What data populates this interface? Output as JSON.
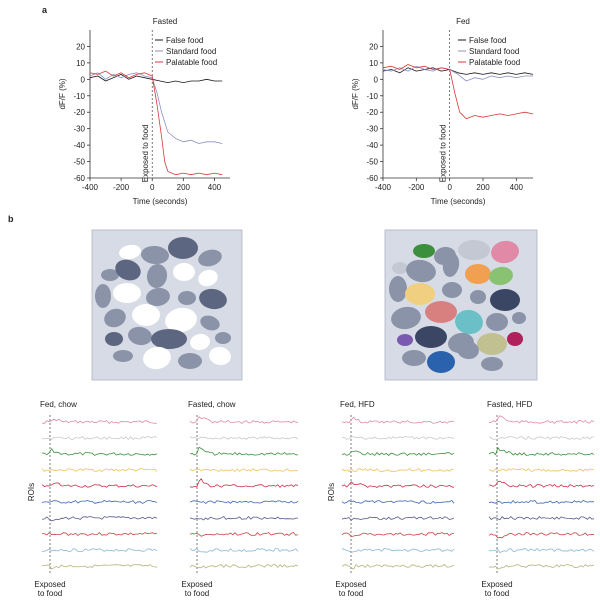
{
  "panel_labels": {
    "a": "a",
    "b": "b"
  },
  "chart_data": [
    {
      "type": "line",
      "title": "Fasted",
      "xlabel": "Time (seconds)",
      "ylabel": "dF/F (%)",
      "xlim": [
        -400,
        500
      ],
      "ylim": [
        -60,
        30
      ],
      "xticks": [
        -400,
        -200,
        0,
        200,
        400
      ],
      "yticks": [
        20,
        10,
        0,
        -10,
        -20,
        -30,
        -40,
        -50,
        -60
      ],
      "annotation": "Exposed to food",
      "legend_position": "top-right",
      "series": [
        {
          "name": "False food",
          "color": "#1a1a1a",
          "x": [
            -400,
            -350,
            -300,
            -250,
            -200,
            -150,
            -100,
            -50,
            0,
            50,
            100,
            150,
            200,
            250,
            300,
            350,
            400,
            450
          ],
          "y": [
            1,
            2,
            -1,
            1,
            3,
            0,
            2,
            1,
            0,
            -1,
            -2,
            -1,
            -2,
            -1,
            -1,
            0,
            -1,
            -1
          ]
        },
        {
          "name": "Standard food",
          "color": "#8d8fc4",
          "x": [
            -400,
            -350,
            -300,
            -250,
            -200,
            -150,
            -100,
            -50,
            0,
            30,
            60,
            100,
            150,
            200,
            250,
            300,
            350,
            400,
            450
          ],
          "y": [
            2,
            4,
            0,
            3,
            1,
            3,
            4,
            2,
            1,
            -8,
            -20,
            -32,
            -36,
            -38,
            -37,
            -39,
            -38,
            -38,
            -39
          ]
        },
        {
          "name": "Palatable food",
          "color": "#d83a3a",
          "x": [
            -400,
            -350,
            -300,
            -250,
            -200,
            -150,
            -100,
            -50,
            0,
            30,
            60,
            80,
            100,
            150,
            200,
            250,
            300,
            350,
            400,
            450
          ],
          "y": [
            4,
            3,
            5,
            2,
            4,
            1,
            3,
            4,
            2,
            -15,
            -35,
            -50,
            -56,
            -58,
            -57,
            -58,
            -57,
            -58,
            -57,
            -58
          ]
        }
      ]
    },
    {
      "type": "line",
      "title": "Fed",
      "xlabel": "Time (seconds)",
      "ylabel": "dF/F (%)",
      "xlim": [
        -400,
        500
      ],
      "ylim": [
        -60,
        30
      ],
      "xticks": [
        -400,
        -200,
        0,
        200,
        400
      ],
      "yticks": [
        20,
        10,
        0,
        -10,
        -20,
        -30,
        -40,
        -50,
        -60
      ],
      "annotation": "Exposed to food",
      "legend_position": "top-right",
      "series": [
        {
          "name": "False food",
          "color": "#1a1a1a",
          "x": [
            -400,
            -350,
            -300,
            -250,
            -200,
            -150,
            -100,
            -50,
            0,
            50,
            100,
            150,
            200,
            250,
            300,
            350,
            400,
            450,
            500
          ],
          "y": [
            5,
            6,
            4,
            7,
            5,
            6,
            7,
            5,
            6,
            4,
            3,
            4,
            3,
            4,
            3,
            4,
            3,
            4,
            3
          ]
        },
        {
          "name": "Standard food",
          "color": "#8d8fc4",
          "x": [
            -400,
            -350,
            -300,
            -250,
            -200,
            -150,
            -100,
            -50,
            0,
            50,
            100,
            150,
            200,
            250,
            300,
            350,
            400,
            450,
            500
          ],
          "y": [
            6,
            5,
            7,
            5,
            8,
            6,
            5,
            7,
            6,
            3,
            -1,
            1,
            0,
            2,
            1,
            2,
            1,
            2,
            2
          ]
        },
        {
          "name": "Palatable food",
          "color": "#d83a3a",
          "x": [
            -400,
            -350,
            -300,
            -250,
            -200,
            -150,
            -100,
            -50,
            0,
            30,
            60,
            100,
            150,
            200,
            250,
            300,
            350,
            400,
            450,
            500
          ],
          "y": [
            7,
            8,
            6,
            9,
            7,
            8,
            6,
            7,
            6,
            -8,
            -20,
            -24,
            -22,
            -23,
            -22,
            -21,
            -22,
            -21,
            -20,
            -21
          ]
        }
      ]
    }
  ],
  "panel_b": {
    "roi_ylabel": "ROIs",
    "exposed_label_1": "Exposed",
    "exposed_label_2": "to food",
    "trace_colors": [
      "#e08aa8",
      "#c9c9c9",
      "#3c8f3c",
      "#f0c060",
      "#c8324a",
      "#3a66b0",
      "#565a8c",
      "#cc4444",
      "#88b8d8",
      "#b6b47a"
    ],
    "groups": [
      {
        "title": "Fed, chow"
      },
      {
        "title": "Fasted, chow"
      },
      {
        "title": "Fed, HFD"
      },
      {
        "title": "Fasted, HFD"
      }
    ]
  }
}
